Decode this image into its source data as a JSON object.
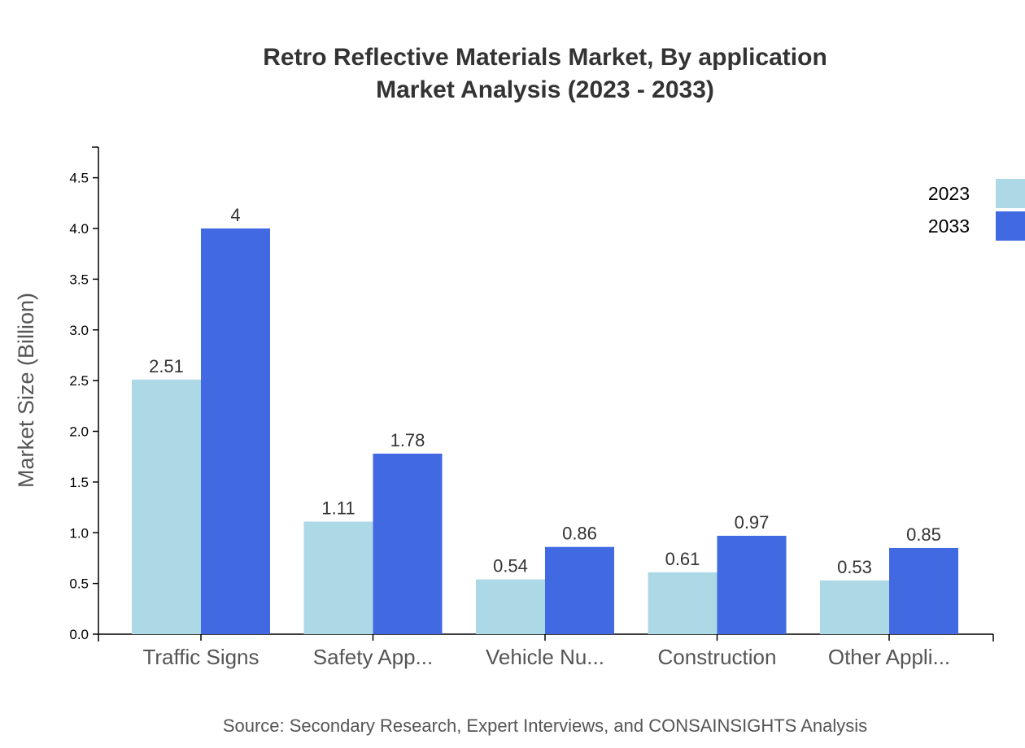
{
  "chart_data": {
    "type": "bar",
    "title": "Retro Reflective Materials Market, By application",
    "subtitle": "Market Analysis (2023 - 2033)",
    "ylabel": "Market Size (Billion)",
    "xlabel": "",
    "ylim": [
      0,
      4.8
    ],
    "yticks": [
      "0.0",
      "0.5",
      "1.0",
      "1.5",
      "2.0",
      "2.5",
      "3.0",
      "3.5",
      "4.0",
      "4.5"
    ],
    "categories": [
      "Traffic Signs",
      "Safety App...",
      "Vehicle Nu...",
      "Construction",
      "Other Appli..."
    ],
    "series": [
      {
        "name": "2023",
        "color": "#ADD8E6",
        "values": [
          2.51,
          1.11,
          0.54,
          0.61,
          0.53
        ]
      },
      {
        "name": "2033",
        "color": "#4169E1",
        "values": [
          4,
          1.78,
          0.86,
          0.97,
          0.85
        ]
      }
    ],
    "legend_position": "top-right",
    "grid": false,
    "source": "Source: Secondary Research, Expert Interviews, and CONSAINSIGHTS Analysis"
  }
}
